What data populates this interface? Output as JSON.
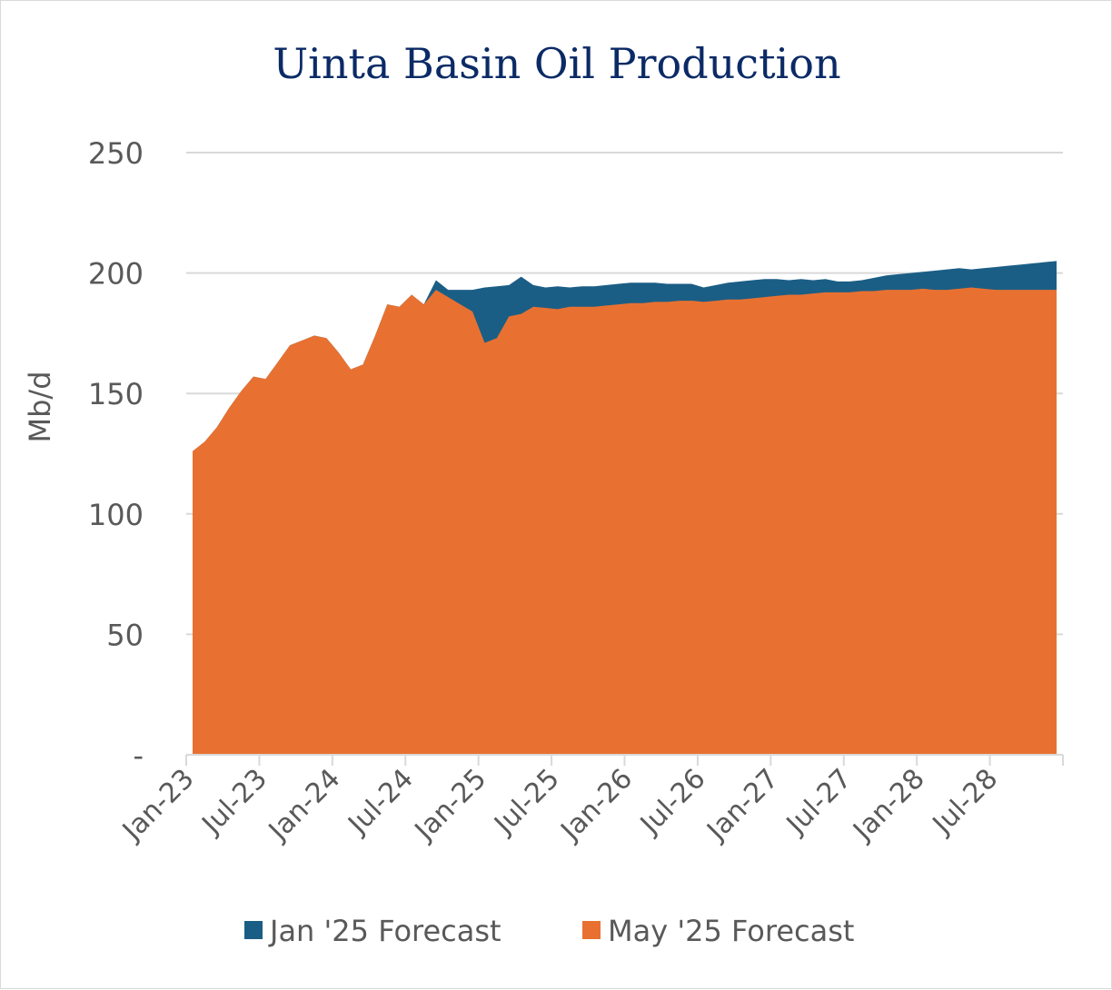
{
  "chart_data": {
    "type": "area",
    "title": "Uinta Basin Oil Production",
    "xlabel": "",
    "ylabel": "Mb/d",
    "ylim": [
      0,
      250
    ],
    "y_ticks": [
      0,
      50,
      100,
      150,
      200,
      250
    ],
    "y_tick_labels": [
      "-",
      "50",
      "100",
      "150",
      "200",
      "250"
    ],
    "x_tick_labels": [
      "Jan-23",
      "Jul-23",
      "Jan-24",
      "Jul-24",
      "Jan-25",
      "Jul-25",
      "Jan-26",
      "Jul-26",
      "Jan-27",
      "Jul-27",
      "Jan-28",
      "Jul-28"
    ],
    "grid": true,
    "legend": "bottom",
    "x": [
      "Jan-23",
      "Feb-23",
      "Mar-23",
      "Apr-23",
      "May-23",
      "Jun-23",
      "Jul-23",
      "Aug-23",
      "Sep-23",
      "Oct-23",
      "Nov-23",
      "Dec-23",
      "Jan-24",
      "Feb-24",
      "Mar-24",
      "Apr-24",
      "May-24",
      "Jun-24",
      "Jul-24",
      "Aug-24",
      "Sep-24",
      "Oct-24",
      "Nov-24",
      "Dec-24",
      "Jan-25",
      "Feb-25",
      "Mar-25",
      "Apr-25",
      "May-25",
      "Jun-25",
      "Jul-25",
      "Aug-25",
      "Sep-25",
      "Oct-25",
      "Nov-25",
      "Dec-25",
      "Jan-26",
      "Feb-26",
      "Mar-26",
      "Apr-26",
      "May-26",
      "Jun-26",
      "Jul-26",
      "Aug-26",
      "Sep-26",
      "Oct-26",
      "Nov-26",
      "Dec-26",
      "Jan-27",
      "Feb-27",
      "Mar-27",
      "Apr-27",
      "May-27",
      "Jun-27",
      "Jul-27",
      "Aug-27",
      "Sep-27",
      "Oct-27",
      "Nov-27",
      "Dec-27",
      "Jan-28",
      "Feb-28",
      "Mar-28",
      "Apr-28",
      "May-28",
      "Jun-28",
      "Jul-28",
      "Aug-28",
      "Sep-28",
      "Oct-28",
      "Nov-28",
      "Dec-28"
    ],
    "series": [
      {
        "name": "Jan '25 Forecast",
        "color": "#1b5e85",
        "values": [
          126,
          130,
          136,
          144,
          151,
          157,
          156,
          163,
          170,
          172,
          174,
          173,
          167,
          160,
          162,
          174,
          187,
          186,
          191,
          187,
          197,
          193,
          193,
          193,
          194,
          194.5,
          195,
          198.5,
          195,
          194,
          194.5,
          194,
          194.5,
          194.5,
          195,
          195.5,
          196,
          196,
          196,
          195.5,
          195.5,
          195.5,
          194,
          195,
          196,
          196.5,
          197,
          197.5,
          197.5,
          197,
          197.5,
          197,
          197.5,
          196.5,
          196.5,
          197,
          198,
          199,
          199.5,
          200,
          200.5,
          201,
          201.5,
          202,
          201.5,
          202,
          202.5,
          203,
          203.5,
          204,
          204.5,
          205
        ]
      },
      {
        "name": "May '25 Forecast",
        "color": "#e87131",
        "values": [
          126,
          130,
          136,
          144,
          151,
          157,
          156,
          163,
          170,
          172,
          174,
          173,
          167,
          160,
          162,
          174,
          187,
          186,
          191,
          187,
          193,
          190,
          187,
          184,
          171,
          173,
          182,
          183,
          186,
          185.5,
          185,
          186,
          186,
          186,
          186.5,
          187,
          187.5,
          187.5,
          188,
          188,
          188.5,
          188.5,
          188,
          188.5,
          189,
          189,
          189.5,
          190,
          190.5,
          191,
          191,
          191.5,
          192,
          192,
          192,
          192.5,
          192.5,
          193,
          193,
          193,
          193.5,
          193,
          193,
          193.5,
          194,
          193.5,
          193,
          193,
          193,
          193,
          193,
          193
        ]
      }
    ]
  }
}
